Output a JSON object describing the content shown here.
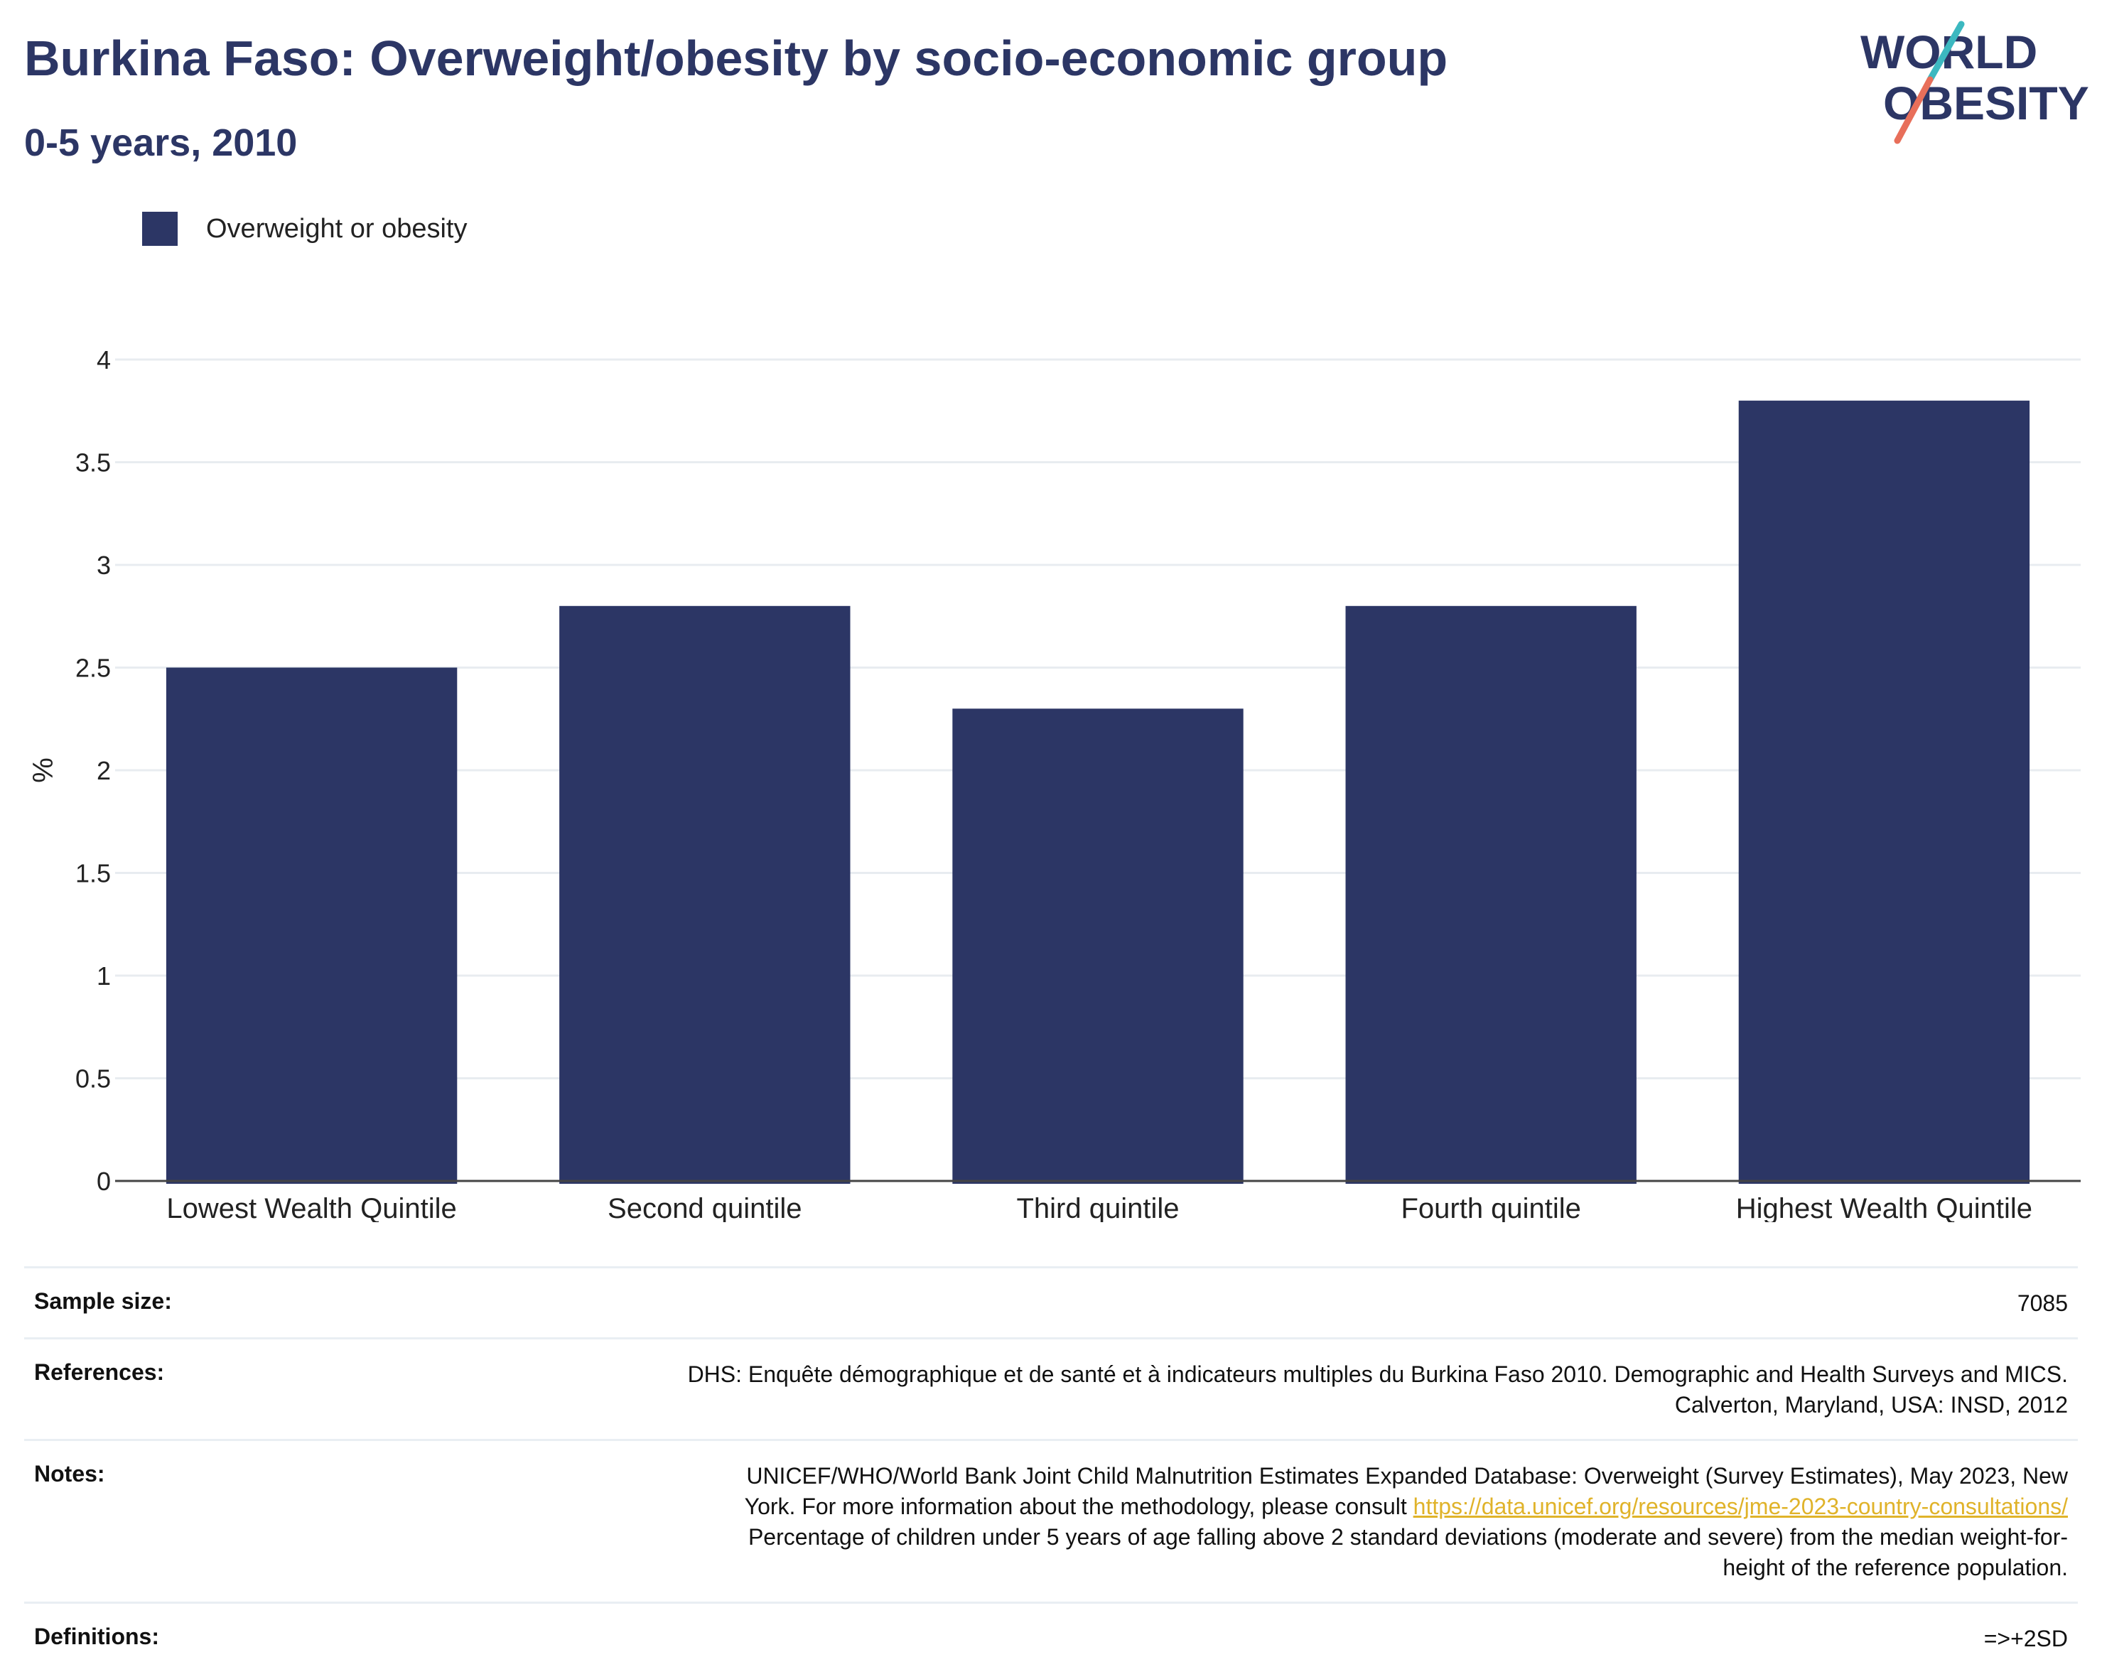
{
  "header": {
    "title": "Burkina Faso: Overweight/obesity by socio-economic group",
    "subtitle": "0-5 years, 2010"
  },
  "logo": {
    "line1": "WORLD",
    "line2": "OBESITY",
    "colors": {
      "text": "#2c3665",
      "slash_top": "#3cb8c0",
      "slash_bottom": "#e86f5a"
    }
  },
  "legend": {
    "label": "Overweight or obesity",
    "color": "#2c3665"
  },
  "chart_data": {
    "type": "bar",
    "categories": [
      "Lowest Wealth Quintile",
      "Second quintile",
      "Third quintile",
      "Fourth quintile",
      "Highest Wealth Quintile"
    ],
    "series": [
      {
        "name": "Overweight or obesity",
        "values": [
          2.5,
          2.8,
          2.3,
          2.8,
          3.8
        ],
        "color": "#2c3665"
      }
    ],
    "ylabel": "%",
    "ylim": [
      0,
      4
    ],
    "yticks": [
      0,
      0.5,
      1,
      1.5,
      2,
      2.5,
      3,
      3.5,
      4
    ],
    "ytick_labels": [
      "0",
      "0.5",
      "1",
      "1.5",
      "2",
      "2.5",
      "3",
      "3.5",
      "4"
    ],
    "grid": true,
    "legend_position": "top-left"
  },
  "meta": {
    "sample_size": {
      "label": "Sample size:",
      "value": "7085"
    },
    "references": {
      "label": "References:",
      "line1": "DHS: Enquête démographique et de santé et à indicateurs multiples du Burkina Faso 2010. Demographic and Health Surveys and MICS.",
      "line2": "Calverton, Maryland, USA: INSD, 2012"
    },
    "notes": {
      "label": "Notes:",
      "line1": "UNICEF/WHO/World Bank Joint Child Malnutrition Estimates Expanded Database: Overweight (Survey Estimates), May 2023, New",
      "line2_prefix": "York. For more information about the methodology, please consult ",
      "link": "https://data.unicef.org/resources/jme-2023-country-consultations/",
      "line3": "Percentage of children under 5 years of age falling above 2 standard deviations (moderate and severe) from the median weight-for-",
      "line4": "height of the reference population."
    },
    "definitions": {
      "label": "Definitions:",
      "value": "=>+2SD"
    }
  }
}
